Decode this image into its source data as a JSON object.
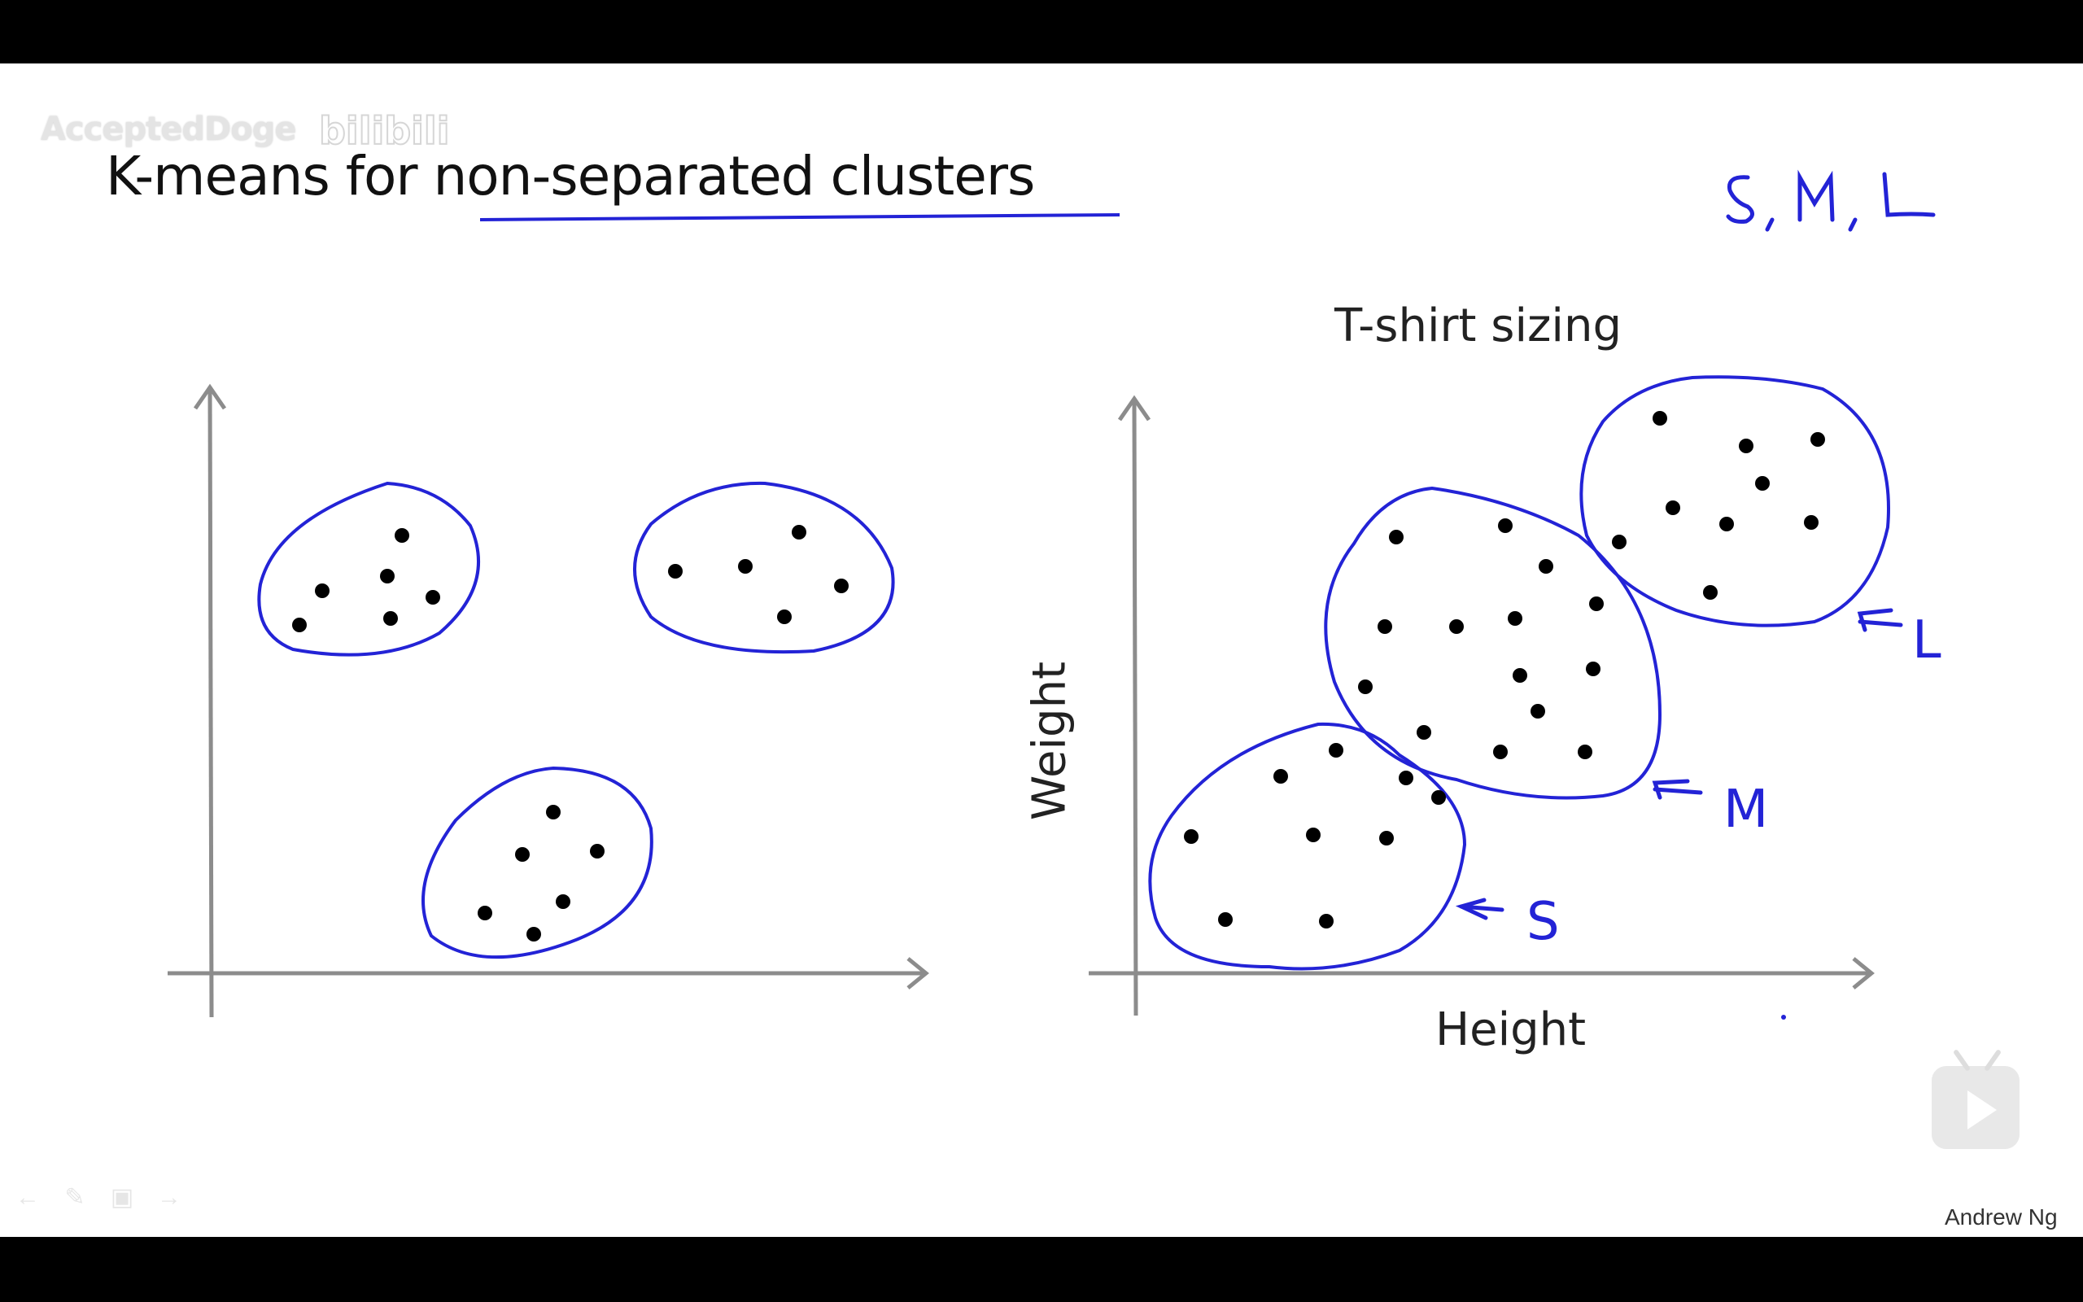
{
  "slide": {
    "title_prefix": "K-means for ",
    "title_underlined": "non-separated clusters",
    "watermark_user": "AcceptedDoge",
    "watermark_site": "bilibili",
    "credit": "Andrew Ng",
    "annotation_sizes": "S, M, L",
    "colors": {
      "ink": "#2323d6",
      "axis": "#888888",
      "text": "#111111"
    }
  },
  "right_plot": {
    "title": "T-shirt sizing",
    "xlabel": "Height",
    "ylabel": "Weight",
    "cluster_labels": [
      "S",
      "M",
      "L"
    ]
  },
  "player": {
    "play_icon": "play-icon",
    "toolbar_icons": [
      "back-icon",
      "pen-icon",
      "screen-icon",
      "forward-icon"
    ]
  }
}
